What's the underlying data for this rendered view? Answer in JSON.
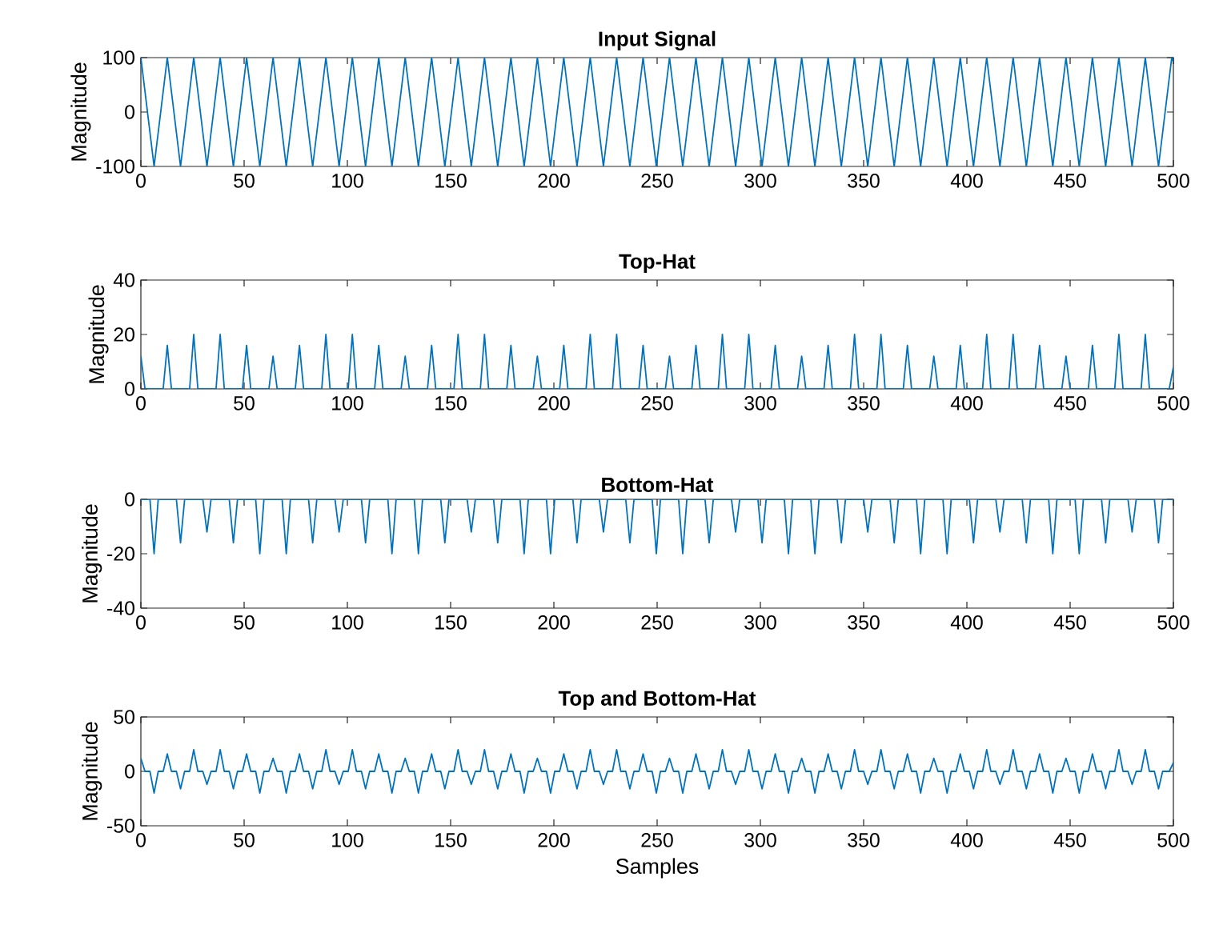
{
  "chart_data": [
    {
      "type": "line",
      "title": "Input Signal",
      "ylabel": "Magnitude",
      "color": "#0072bd",
      "xlim": [
        0,
        500
      ],
      "ylim": [
        -100,
        100
      ],
      "xticks": [
        0,
        50,
        100,
        150,
        200,
        250,
        300,
        350,
        400,
        450,
        500
      ],
      "yticks": [
        -100,
        0,
        100
      ],
      "x": [
        0,
        6.4,
        12.8,
        19.2,
        25.6,
        32,
        38.4,
        44.8,
        51.2,
        57.6,
        64,
        70.4,
        76.8,
        83.2,
        89.6,
        96,
        102.4,
        108.8,
        115.2,
        121.6,
        128,
        134.4,
        140.8,
        147.2,
        153.6,
        160,
        166.4,
        172.8,
        179.2,
        185.6,
        192,
        198.4,
        204.8,
        211.2,
        217.6,
        224,
        230.4,
        236.8,
        243.2,
        249.6,
        256,
        262.4,
        268.8,
        275.2,
        281.6,
        288,
        294.4,
        300.8,
        307.2,
        313.6,
        320,
        326.4,
        332.8,
        339.2,
        345.6,
        352,
        358.4,
        364.8,
        371.2,
        377.6,
        384,
        390.4,
        396.8,
        403.2,
        409.6,
        416,
        422.4,
        428.8,
        435.2,
        441.6,
        448,
        454.4,
        460.8,
        467.2,
        473.6,
        480,
        486.4,
        492.8,
        499.2,
        500
      ],
      "values": [
        100,
        -100,
        100,
        -100,
        100,
        -100,
        100,
        -100,
        100,
        -100,
        100,
        -100,
        100,
        -100,
        100,
        -100,
        100,
        -100,
        100,
        -100,
        100,
        -100,
        100,
        -100,
        100,
        -100,
        100,
        -100,
        100,
        -100,
        100,
        -100,
        100,
        -100,
        100,
        -100,
        100,
        -100,
        100,
        -100,
        100,
        -100,
        100,
        -100,
        100,
        -100,
        100,
        -100,
        100,
        -100,
        100,
        -100,
        100,
        -100,
        100,
        -100,
        100,
        -100,
        100,
        -100,
        100,
        -100,
        100,
        -100,
        100,
        -100,
        100,
        -100,
        100,
        -100,
        100,
        -100,
        100,
        -100,
        100,
        -100,
        100,
        -100,
        100,
        92
      ]
    },
    {
      "type": "line",
      "title": "Top-Hat",
      "ylabel": "Magnitude",
      "color": "#0072bd",
      "xlim": [
        0,
        500
      ],
      "ylim": [
        0,
        40
      ],
      "xticks": [
        0,
        50,
        100,
        150,
        200,
        250,
        300,
        350,
        400,
        450,
        500
      ],
      "yticks": [
        0,
        20,
        40
      ],
      "x": [
        0,
        2,
        10.8,
        12.8,
        14.8,
        23.6,
        25.6,
        27.6,
        36.4,
        38.4,
        40.4,
        49.2,
        51.2,
        53.2,
        62,
        64,
        66,
        74.8,
        76.8,
        78.8,
        87.6,
        89.6,
        91.6,
        100.4,
        102.4,
        104.4,
        113.2,
        115.2,
        117.2,
        126,
        128,
        130,
        138.8,
        140.8,
        142.8,
        151.6,
        153.6,
        155.6,
        164.4,
        166.4,
        168.4,
        177.2,
        179.2,
        181.2,
        190,
        192,
        194,
        202.8,
        204.8,
        206.8,
        215.6,
        217.6,
        219.6,
        228.4,
        230.4,
        232.4,
        241.2,
        243.2,
        245.2,
        254,
        256,
        258,
        266.8,
        268.8,
        270.8,
        279.6,
        281.6,
        283.6,
        292.4,
        294.4,
        296.4,
        305.2,
        307.2,
        309.2,
        318,
        320,
        322,
        330.8,
        332.8,
        334.8,
        343.6,
        345.6,
        347.6,
        356.4,
        358.4,
        360.4,
        369.2,
        371.2,
        373.2,
        382,
        384,
        386,
        394.8,
        396.8,
        398.8,
        407.6,
        409.6,
        411.6,
        420.4,
        422.4,
        424.4,
        433.2,
        435.2,
        437.2,
        446,
        448,
        450,
        458.8,
        460.8,
        462.8,
        471.6,
        473.6,
        475.6,
        484.4,
        486.4,
        488.4,
        498,
        500
      ],
      "values": [
        12,
        0,
        0,
        16,
        0,
        0,
        20,
        0,
        0,
        20,
        0,
        0,
        16,
        0,
        0,
        12,
        0,
        0,
        16,
        0,
        0,
        20,
        0,
        0,
        20,
        0,
        0,
        16,
        0,
        0,
        12,
        0,
        0,
        16,
        0,
        0,
        20,
        0,
        0,
        20,
        0,
        0,
        16,
        0,
        0,
        12,
        0,
        0,
        16,
        0,
        0,
        20,
        0,
        0,
        20,
        0,
        0,
        16,
        0,
        0,
        12,
        0,
        0,
        16,
        0,
        0,
        20,
        0,
        0,
        20,
        0,
        0,
        16,
        0,
        0,
        12,
        0,
        0,
        16,
        0,
        0,
        20,
        0,
        0,
        20,
        0,
        0,
        16,
        0,
        0,
        12,
        0,
        0,
        16,
        0,
        0,
        20,
        0,
        0,
        20,
        0,
        0,
        16,
        0,
        0,
        12,
        0,
        0,
        16,
        0,
        0,
        20,
        0,
        0,
        20,
        0,
        0,
        8
      ]
    },
    {
      "type": "line",
      "title": "Bottom-Hat",
      "ylabel": "Magnitude",
      "color": "#0072bd",
      "xlim": [
        0,
        500
      ],
      "ylim": [
        -40,
        0
      ],
      "xticks": [
        0,
        50,
        100,
        150,
        200,
        250,
        300,
        350,
        400,
        450,
        500
      ],
      "yticks": [
        -40,
        -20,
        0
      ],
      "x": [
        0,
        4.4,
        6.4,
        8.4,
        17.2,
        19.2,
        21.2,
        30,
        32,
        34,
        42.8,
        44.8,
        46.8,
        55.6,
        57.6,
        59.6,
        68.4,
        70.4,
        72.4,
        81.2,
        83.2,
        85.2,
        94,
        96,
        98,
        106.8,
        108.8,
        110.8,
        119.6,
        121.6,
        123.6,
        132.4,
        134.4,
        136.4,
        145.2,
        147.2,
        149.2,
        158,
        160,
        162,
        170.8,
        172.8,
        174.8,
        183.6,
        185.6,
        187.6,
        196.4,
        198.4,
        200.4,
        209.2,
        211.2,
        213.2,
        222,
        224,
        226,
        234.8,
        236.8,
        238.8,
        247.6,
        249.6,
        251.6,
        260.4,
        262.4,
        264.4,
        273.2,
        275.2,
        277.2,
        286,
        288,
        290,
        298.8,
        300.8,
        302.8,
        311.6,
        313.6,
        315.6,
        324.4,
        326.4,
        328.4,
        337.2,
        339.2,
        341.2,
        350,
        352,
        354,
        362.8,
        364.8,
        366.8,
        375.6,
        377.6,
        379.6,
        388.4,
        390.4,
        392.4,
        401.2,
        403.2,
        405.2,
        414,
        416,
        418,
        426.8,
        428.8,
        430.8,
        439.6,
        441.6,
        443.6,
        452.4,
        454.4,
        456.4,
        465.2,
        467.2,
        469.2,
        478,
        480,
        482,
        490.8,
        492.8,
        494.8,
        500
      ],
      "values": [
        0,
        0,
        -20,
        0,
        0,
        -16,
        0,
        0,
        -12,
        0,
        0,
        -16,
        0,
        0,
        -20,
        0,
        0,
        -20,
        0,
        0,
        -16,
        0,
        0,
        -12,
        0,
        0,
        -16,
        0,
        0,
        -20,
        0,
        0,
        -20,
        0,
        0,
        -16,
        0,
        0,
        -12,
        0,
        0,
        -16,
        0,
        0,
        -20,
        0,
        0,
        -20,
        0,
        0,
        -16,
        0,
        0,
        -12,
        0,
        0,
        -16,
        0,
        0,
        -20,
        0,
        0,
        -20,
        0,
        0,
        -16,
        0,
        0,
        -12,
        0,
        0,
        -16,
        0,
        0,
        -20,
        0,
        0,
        -20,
        0,
        0,
        -16,
        0,
        0,
        -12,
        0,
        0,
        -16,
        0,
        0,
        -20,
        0,
        0,
        -20,
        0,
        0,
        -16,
        0,
        0,
        -12,
        0,
        0,
        -16,
        0,
        0,
        -20,
        0,
        0,
        -20,
        0,
        0,
        -16,
        0,
        0,
        -12,
        0,
        0,
        -16,
        0,
        0
      ]
    },
    {
      "type": "line",
      "title": "Top and Bottom-Hat",
      "ylabel": "Magnitude",
      "xlabel": "Samples",
      "color": "#0072bd",
      "xlim": [
        0,
        500
      ],
      "ylim": [
        -50,
        50
      ],
      "xticks": [
        0,
        50,
        100,
        150,
        200,
        250,
        300,
        350,
        400,
        450,
        500
      ],
      "yticks": [
        -50,
        0,
        50
      ],
      "x": [
        0,
        2,
        4.4,
        6.4,
        8.4,
        10.8,
        12.8,
        14.8,
        17.2,
        19.2,
        21.2,
        23.6,
        25.6,
        27.6,
        30,
        32,
        34,
        36.4,
        38.4,
        40.4,
        42.8,
        44.8,
        46.8,
        49.2,
        51.2,
        53.2,
        55.6,
        57.6,
        59.6,
        62,
        64,
        66,
        68.4,
        70.4,
        72.4,
        74.8,
        76.8,
        78.8,
        81.2,
        83.2,
        85.2,
        87.6,
        89.6,
        91.6,
        94,
        96,
        98,
        100.4,
        102.4,
        104.4,
        106.8,
        108.8,
        110.8,
        113.2,
        115.2,
        117.2,
        119.6,
        121.6,
        123.6,
        126,
        128,
        130,
        132.4,
        134.4,
        136.4,
        138.8,
        140.8,
        142.8,
        145.2,
        147.2,
        149.2,
        151.6,
        153.6,
        155.6,
        158,
        160,
        162,
        164.4,
        166.4,
        168.4,
        170.8,
        172.8,
        174.8,
        177.2,
        179.2,
        181.2,
        183.6,
        185.6,
        187.6,
        190,
        192,
        194,
        196.4,
        198.4,
        200.4,
        202.8,
        204.8,
        206.8,
        209.2,
        211.2,
        213.2,
        215.6,
        217.6,
        219.6,
        222,
        224,
        226,
        228.4,
        230.4,
        232.4,
        234.8,
        236.8,
        238.8,
        241.2,
        243.2,
        245.2,
        247.6,
        249.6,
        251.6,
        254,
        256,
        258,
        260.4,
        262.4,
        264.4,
        266.8,
        268.8,
        270.8,
        273.2,
        275.2,
        277.2,
        279.6,
        281.6,
        283.6,
        286,
        288,
        290,
        292.4,
        294.4,
        296.4,
        298.8,
        300.8,
        302.8,
        305.2,
        307.2,
        309.2,
        311.6,
        313.6,
        315.6,
        318,
        320,
        322,
        324.4,
        326.4,
        328.4,
        330.8,
        332.8,
        334.8,
        337.2,
        339.2,
        341.2,
        343.6,
        345.6,
        347.6,
        350,
        352,
        354,
        356.4,
        358.4,
        360.4,
        362.8,
        364.8,
        366.8,
        369.2,
        371.2,
        373.2,
        375.6,
        377.6,
        379.6,
        382,
        384,
        386,
        388.4,
        390.4,
        392.4,
        394.8,
        396.8,
        398.8,
        401.2,
        403.2,
        405.2,
        407.6,
        409.6,
        411.6,
        414,
        416,
        418,
        420.4,
        422.4,
        424.4,
        426.8,
        428.8,
        430.8,
        433.2,
        435.2,
        437.2,
        439.6,
        441.6,
        443.6,
        446,
        448,
        450,
        452.4,
        454.4,
        456.4,
        458.8,
        460.8,
        462.8,
        465.2,
        467.2,
        469.2,
        471.6,
        473.6,
        475.6,
        478,
        480,
        482,
        484.4,
        486.4,
        488.4,
        490.8,
        492.8,
        494.8,
        498,
        500
      ],
      "values": [
        12,
        0,
        0,
        -20,
        0,
        0,
        16,
        0,
        0,
        -16,
        0,
        0,
        20,
        0,
        0,
        -12,
        0,
        0,
        20,
        0,
        0,
        -16,
        0,
        0,
        16,
        0,
        0,
        -20,
        0,
        0,
        12,
        0,
        0,
        -20,
        0,
        0,
        16,
        0,
        0,
        -16,
        0,
        0,
        20,
        0,
        0,
        -12,
        0,
        0,
        20,
        0,
        0,
        -16,
        0,
        0,
        16,
        0,
        0,
        -20,
        0,
        0,
        12,
        0,
        0,
        -20,
        0,
        0,
        16,
        0,
        0,
        -16,
        0,
        0,
        20,
        0,
        0,
        -12,
        0,
        0,
        20,
        0,
        0,
        -16,
        0,
        0,
        16,
        0,
        0,
        -20,
        0,
        0,
        12,
        0,
        0,
        -20,
        0,
        0,
        16,
        0,
        0,
        -16,
        0,
        0,
        20,
        0,
        0,
        -12,
        0,
        0,
        20,
        0,
        0,
        -16,
        0,
        0,
        16,
        0,
        0,
        -20,
        0,
        0,
        12,
        0,
        0,
        -20,
        0,
        0,
        16,
        0,
        0,
        -16,
        0,
        0,
        20,
        0,
        0,
        -12,
        0,
        0,
        20,
        0,
        0,
        -16,
        0,
        0,
        16,
        0,
        0,
        -20,
        0,
        0,
        12,
        0,
        0,
        -20,
        0,
        0,
        16,
        0,
        0,
        -16,
        0,
        0,
        20,
        0,
        0,
        -12,
        0,
        0,
        20,
        0,
        0,
        -16,
        0,
        0,
        16,
        0,
        0,
        -20,
        0,
        0,
        12,
        0,
        0,
        -20,
        0,
        0,
        16,
        0,
        0,
        -16,
        0,
        0,
        20,
        0,
        0,
        -12,
        0,
        0,
        20,
        0,
        0,
        -16,
        0,
        0,
        16,
        0,
        0,
        -20,
        0,
        0,
        12,
        0,
        0,
        -20,
        0,
        0,
        16,
        0,
        0,
        -16,
        0,
        0,
        20,
        0,
        0,
        -12,
        0,
        0,
        20,
        0,
        0,
        -16,
        0,
        0,
        8
      ]
    }
  ]
}
